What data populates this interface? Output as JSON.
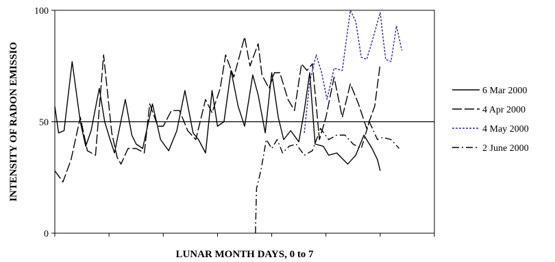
{
  "chart_data": {
    "type": "line",
    "title": "",
    "xlabel": "LUNAR MONTH DAYS, 0 to 7",
    "ylabel": "INTENSITY OF RADON EMISSIO",
    "xlim": [
      0,
      7
    ],
    "ylim": [
      0,
      100
    ],
    "yticks": [
      "0",
      "50",
      "100"
    ],
    "reference_line_y": 50,
    "legend_position": "right",
    "series": [
      {
        "name": "6 Mar 2000",
        "color": "#000000",
        "dash": "solid",
        "points": [
          [
            0.0,
            57
          ],
          [
            0.07,
            45
          ],
          [
            0.17,
            46
          ],
          [
            0.32,
            77
          ],
          [
            0.47,
            50
          ],
          [
            0.57,
            39
          ],
          [
            0.67,
            46
          ],
          [
            0.82,
            65
          ],
          [
            0.92,
            50
          ],
          [
            1.02,
            42
          ],
          [
            1.1,
            36
          ],
          [
            1.3,
            60
          ],
          [
            1.42,
            44
          ],
          [
            1.5,
            40
          ],
          [
            1.62,
            38
          ],
          [
            1.8,
            58
          ],
          [
            1.95,
            42
          ],
          [
            2.1,
            37
          ],
          [
            2.25,
            46
          ],
          [
            2.4,
            64
          ],
          [
            2.55,
            45
          ],
          [
            2.65,
            42
          ],
          [
            2.78,
            36
          ],
          [
            2.9,
            64
          ],
          [
            3.0,
            48
          ],
          [
            3.12,
            50
          ],
          [
            3.25,
            73
          ],
          [
            3.38,
            57
          ],
          [
            3.5,
            48
          ],
          [
            3.65,
            71
          ],
          [
            3.75,
            62
          ],
          [
            3.88,
            45
          ],
          [
            4.0,
            72
          ],
          [
            4.12,
            52
          ],
          [
            4.22,
            42
          ],
          [
            4.35,
            46
          ],
          [
            4.5,
            41
          ],
          [
            4.6,
            55
          ],
          [
            4.7,
            72
          ],
          [
            4.8,
            40
          ],
          [
            4.95,
            39
          ],
          [
            5.05,
            35
          ],
          [
            5.2,
            36
          ],
          [
            5.4,
            31
          ],
          [
            5.55,
            35
          ],
          [
            5.7,
            44
          ],
          [
            5.85,
            38
          ],
          [
            5.95,
            33
          ],
          [
            6.0,
            28
          ]
        ]
      },
      {
        "name": "4 Apr 2000",
        "color": "#000000",
        "dash": "longdash",
        "points": [
          [
            0.0,
            28
          ],
          [
            0.15,
            23
          ],
          [
            0.3,
            33
          ],
          [
            0.47,
            52
          ],
          [
            0.6,
            37
          ],
          [
            0.75,
            35
          ],
          [
            0.9,
            80
          ],
          [
            1.05,
            45
          ],
          [
            1.15,
            34
          ],
          [
            1.22,
            31
          ],
          [
            1.35,
            38
          ],
          [
            1.5,
            38
          ],
          [
            1.65,
            36
          ],
          [
            1.75,
            58
          ],
          [
            1.9,
            48
          ],
          [
            2.0,
            48
          ],
          [
            2.15,
            55
          ],
          [
            2.3,
            55
          ],
          [
            2.45,
            46
          ],
          [
            2.6,
            42
          ],
          [
            2.78,
            60
          ],
          [
            2.9,
            54
          ],
          [
            3.05,
            65
          ],
          [
            3.15,
            80
          ],
          [
            3.3,
            70
          ],
          [
            3.5,
            88
          ],
          [
            3.6,
            75
          ],
          [
            3.75,
            85
          ],
          [
            3.82,
            71
          ],
          [
            3.95,
            65
          ],
          [
            4.05,
            72
          ],
          [
            4.15,
            72
          ],
          [
            4.3,
            60
          ],
          [
            4.42,
            55
          ],
          [
            4.55,
            76
          ],
          [
            4.65,
            73
          ],
          [
            4.75,
            76
          ],
          [
            4.88,
            42
          ],
          [
            5.0,
            52
          ],
          [
            5.15,
            70
          ],
          [
            5.3,
            52
          ],
          [
            5.45,
            67
          ],
          [
            5.6,
            58
          ],
          [
            5.75,
            47
          ],
          [
            5.9,
            57
          ],
          [
            6.0,
            76
          ]
        ]
      },
      {
        "name": "4 May 2000",
        "color": "#2a2a8a",
        "dash": "dotted",
        "points": [
          [
            4.6,
            45
          ],
          [
            4.7,
            68
          ],
          [
            4.82,
            80
          ],
          [
            4.92,
            72
          ],
          [
            5.02,
            60
          ],
          [
            5.15,
            74
          ],
          [
            5.3,
            73
          ],
          [
            5.45,
            100
          ],
          [
            5.55,
            95
          ],
          [
            5.65,
            79
          ],
          [
            5.75,
            78
          ],
          [
            5.85,
            86
          ],
          [
            6.0,
            99
          ],
          [
            6.1,
            78
          ],
          [
            6.2,
            77
          ],
          [
            6.3,
            93
          ],
          [
            6.4,
            82
          ]
        ]
      },
      {
        "name": "2 June 2000",
        "color": "#000000",
        "dash": "dashdot",
        "points": [
          [
            3.7,
            0
          ],
          [
            3.72,
            20
          ],
          [
            3.8,
            28
          ],
          [
            3.9,
            42
          ],
          [
            4.0,
            38
          ],
          [
            4.1,
            42
          ],
          [
            4.2,
            36
          ],
          [
            4.32,
            39
          ],
          [
            4.45,
            40
          ],
          [
            4.6,
            35
          ],
          [
            4.75,
            37
          ],
          [
            4.9,
            47
          ],
          [
            5.05,
            42
          ],
          [
            5.2,
            44
          ],
          [
            5.35,
            44
          ],
          [
            5.5,
            40
          ],
          [
            5.65,
            38
          ],
          [
            5.8,
            50
          ],
          [
            5.95,
            42
          ],
          [
            6.05,
            43
          ],
          [
            6.2,
            42
          ],
          [
            6.35,
            38
          ]
        ]
      }
    ]
  }
}
